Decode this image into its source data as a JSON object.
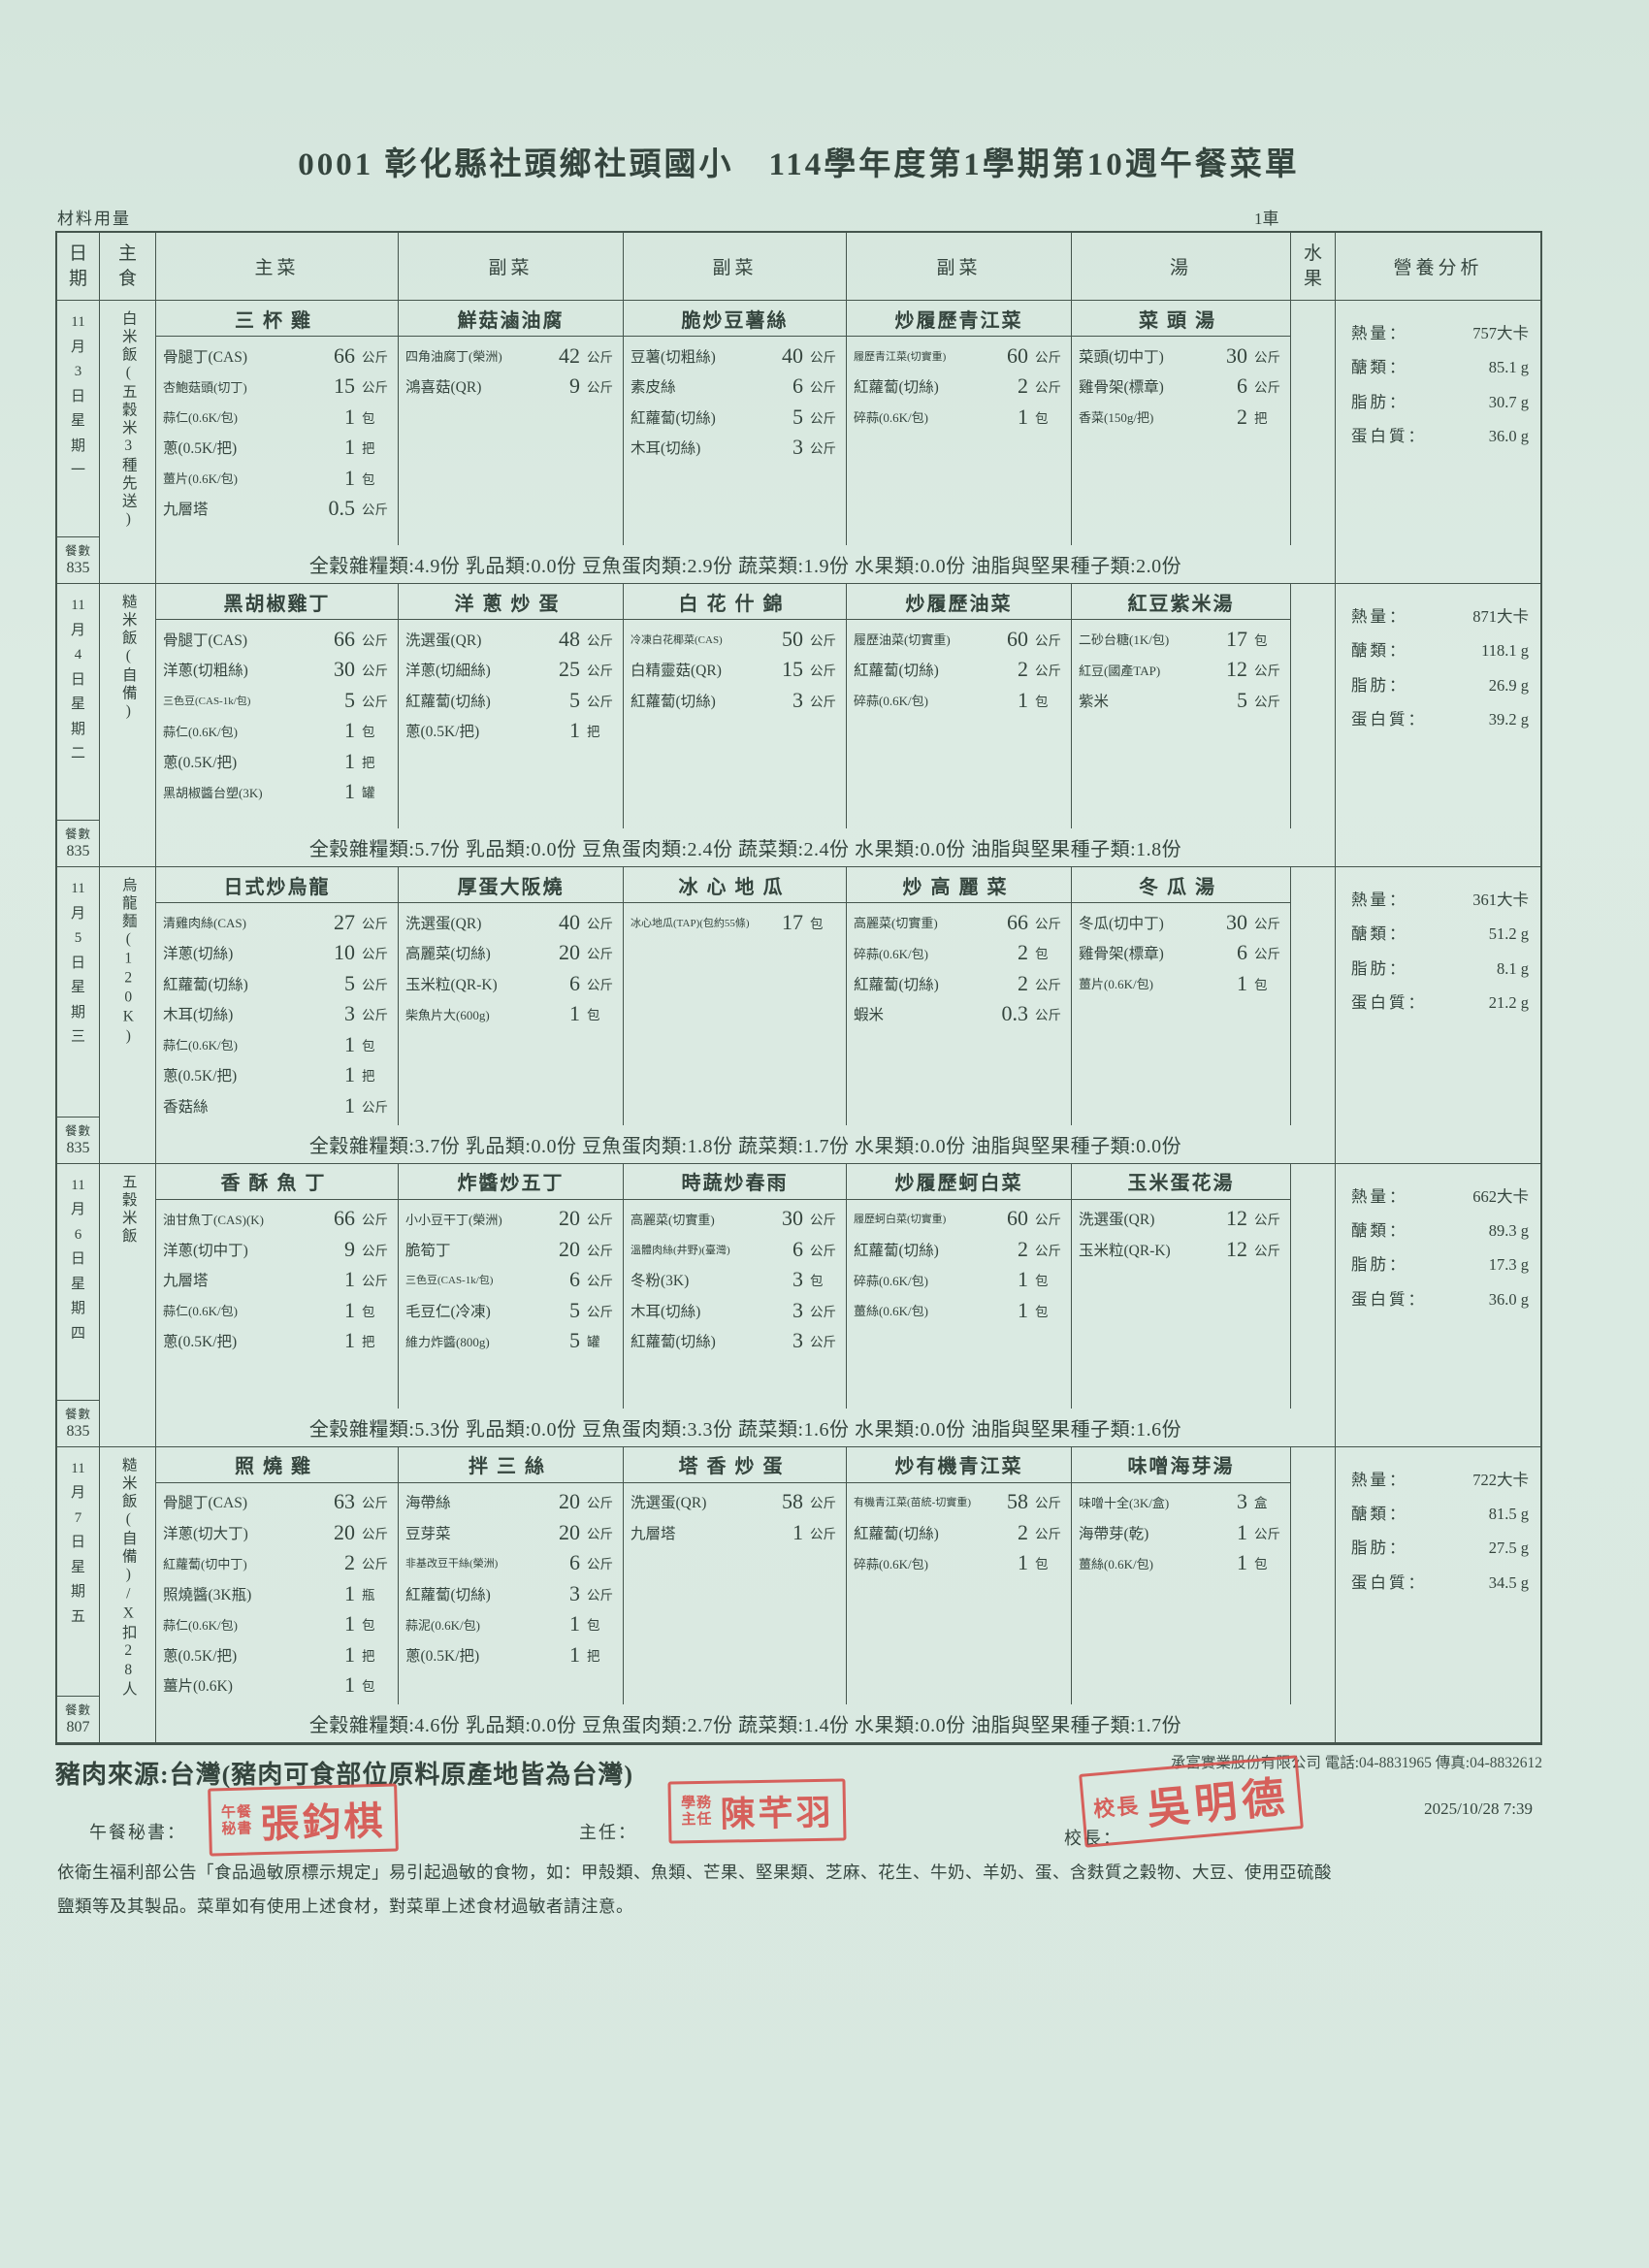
{
  "page": {
    "title": "0001 彰化縣社頭鄉社頭國小　114學年度第1學期第10週午餐菜單",
    "top_left_label": "材料用量",
    "top_right_label": "1車"
  },
  "table": {
    "headers": [
      "日期",
      "主食",
      "主菜",
      "副菜",
      "副菜",
      "副菜",
      "湯",
      "水果",
      "營養分析"
    ],
    "meal_count_label": "餐數"
  },
  "days": [
    {
      "date": "11月3日星期一",
      "meals": "835",
      "staple": "白米飯(五穀米3種先送)",
      "dishes": [
        {
          "title": "三杯雞",
          "items": [
            [
              "骨腿丁(CAS)",
              "66",
              "公斤"
            ],
            [
              "杏鮑菇頭(切丁)",
              "15",
              "公斤"
            ],
            [
              "蒜仁(0.6K/包)",
              "1",
              "包"
            ],
            [
              "蔥(0.5K/把)",
              "1",
              "把"
            ],
            [
              "薑片(0.6K/包)",
              "1",
              "包"
            ],
            [
              "九層塔",
              "0.5",
              "公斤"
            ]
          ]
        },
        {
          "title": "鮮菇滷油腐",
          "items": [
            [
              "四角油腐丁(榮洲)",
              "42",
              "公斤"
            ],
            [
              "鴻喜菇(QR)",
              "9",
              "公斤"
            ]
          ]
        },
        {
          "title": "脆炒豆薯絲",
          "items": [
            [
              "豆薯(切粗絲)",
              "40",
              "公斤"
            ],
            [
              "素皮絲",
              "6",
              "公斤"
            ],
            [
              "紅蘿蔔(切絲)",
              "5",
              "公斤"
            ],
            [
              "木耳(切絲)",
              "3",
              "公斤"
            ]
          ]
        },
        {
          "title": "炒履歷青江菜",
          "items": [
            [
              "履歷青江菜(切實重)",
              "60",
              "公斤"
            ],
            [
              "紅蘿蔔(切絲)",
              "2",
              "公斤"
            ],
            [
              "碎蒜(0.6K/包)",
              "1",
              "包"
            ]
          ]
        },
        {
          "title": "菜頭湯",
          "items": [
            [
              "菜頭(切中丁)",
              "30",
              "公斤"
            ],
            [
              "雞骨架(標章)",
              "6",
              "公斤"
            ],
            [
              "香菜(150g/把)",
              "2",
              "把"
            ]
          ]
        }
      ],
      "summary": "全穀雜糧類:4.9份 乳品類:0.0份 豆魚蛋肉類:2.9份 蔬菜類:1.9份 水果類:0.0份 油脂與堅果種子類:2.0份",
      "nutrition": [
        [
          "熱量：",
          "757大卡"
        ],
        [
          "醣類：",
          "85.1 g"
        ],
        [
          "脂肪：",
          "30.7 g"
        ],
        [
          "蛋白質：",
          "36.0 g"
        ]
      ]
    },
    {
      "date": "11月4日星期二",
      "meals": "835",
      "staple": "糙米飯(自備)",
      "dishes": [
        {
          "title": "黑胡椒雞丁",
          "items": [
            [
              "骨腿丁(CAS)",
              "66",
              "公斤"
            ],
            [
              "洋蔥(切粗絲)",
              "30",
              "公斤"
            ],
            [
              "三色豆(CAS-1k/包)",
              "5",
              "公斤"
            ],
            [
              "蒜仁(0.6K/包)",
              "1",
              "包"
            ],
            [
              "蔥(0.5K/把)",
              "1",
              "把"
            ],
            [
              "黑胡椒醬台塑(3K)",
              "1",
              "罐"
            ]
          ]
        },
        {
          "title": "洋蔥炒蛋",
          "items": [
            [
              "洗選蛋(QR)",
              "48",
              "公斤"
            ],
            [
              "洋蔥(切細絲)",
              "25",
              "公斤"
            ],
            [
              "紅蘿蔔(切絲)",
              "5",
              "公斤"
            ],
            [
              "蔥(0.5K/把)",
              "1",
              "把"
            ]
          ]
        },
        {
          "title": "白花什錦",
          "items": [
            [
              "冷凍白花椰菜(CAS)",
              "50",
              "公斤"
            ],
            [
              "白精靈菇(QR)",
              "15",
              "公斤"
            ],
            [
              "紅蘿蔔(切絲)",
              "3",
              "公斤"
            ]
          ]
        },
        {
          "title": "炒履歷油菜",
          "items": [
            [
              "履歷油菜(切實重)",
              "60",
              "公斤"
            ],
            [
              "紅蘿蔔(切絲)",
              "2",
              "公斤"
            ],
            [
              "碎蒜(0.6K/包)",
              "1",
              "包"
            ]
          ]
        },
        {
          "title": "紅豆紫米湯",
          "items": [
            [
              "二砂台糖(1K/包)",
              "17",
              "包"
            ],
            [
              "紅豆(國產TAP)",
              "12",
              "公斤"
            ],
            [
              "紫米",
              "5",
              "公斤"
            ]
          ]
        }
      ],
      "summary": "全穀雜糧類:5.7份 乳品類:0.0份 豆魚蛋肉類:2.4份 蔬菜類:2.4份 水果類:0.0份 油脂與堅果種子類:1.8份",
      "nutrition": [
        [
          "熱量：",
          "871大卡"
        ],
        [
          "醣類：",
          "118.1 g"
        ],
        [
          "脂肪：",
          "26.9 g"
        ],
        [
          "蛋白質：",
          "39.2 g"
        ]
      ]
    },
    {
      "date": "11月5日星期三",
      "meals": "835",
      "staple": "烏龍麵(120K)",
      "dishes": [
        {
          "title": "日式炒烏龍",
          "items": [
            [
              "清雞肉絲(CAS)",
              "27",
              "公斤"
            ],
            [
              "洋蔥(切絲)",
              "10",
              "公斤"
            ],
            [
              "紅蘿蔔(切絲)",
              "5",
              "公斤"
            ],
            [
              "木耳(切絲)",
              "3",
              "公斤"
            ],
            [
              "蒜仁(0.6K/包)",
              "1",
              "包"
            ],
            [
              "蔥(0.5K/把)",
              "1",
              "把"
            ],
            [
              "香菇絲",
              "1",
              "公斤"
            ]
          ]
        },
        {
          "title": "厚蛋大阪燒",
          "items": [
            [
              "洗選蛋(QR)",
              "40",
              "公斤"
            ],
            [
              "高麗菜(切絲)",
              "20",
              "公斤"
            ],
            [
              "玉米粒(QR-K)",
              "6",
              "公斤"
            ],
            [
              "柴魚片大(600g)",
              "1",
              "包"
            ]
          ]
        },
        {
          "title": "冰心地瓜",
          "items": [
            [
              "冰心地瓜(TAP)(包約55條)",
              "17",
              "包"
            ]
          ]
        },
        {
          "title": "炒高麗菜",
          "items": [
            [
              "高麗菜(切實重)",
              "66",
              "公斤"
            ],
            [
              "碎蒜(0.6K/包)",
              "2",
              "包"
            ],
            [
              "紅蘿蔔(切絲)",
              "2",
              "公斤"
            ],
            [
              "蝦米",
              "0.3",
              "公斤"
            ]
          ]
        },
        {
          "title": "冬瓜湯",
          "items": [
            [
              "冬瓜(切中丁)",
              "30",
              "公斤"
            ],
            [
              "雞骨架(標章)",
              "6",
              "公斤"
            ],
            [
              "薑片(0.6K/包)",
              "1",
              "包"
            ]
          ]
        }
      ],
      "summary": "全穀雜糧類:3.7份 乳品類:0.0份 豆魚蛋肉類:1.8份 蔬菜類:1.7份 水果類:0.0份 油脂與堅果種子類:0.0份",
      "nutrition": [
        [
          "熱量：",
          "361大卡"
        ],
        [
          "醣類：",
          "51.2 g"
        ],
        [
          "脂肪：",
          "8.1 g"
        ],
        [
          "蛋白質：",
          "21.2 g"
        ]
      ]
    },
    {
      "date": "11月6日星期四",
      "meals": "835",
      "staple": "五穀米飯",
      "dishes": [
        {
          "title": "香酥魚丁",
          "items": [
            [
              "油甘魚丁(CAS)(K)",
              "66",
              "公斤"
            ],
            [
              "洋蔥(切中丁)",
              "9",
              "公斤"
            ],
            [
              "九層塔",
              "1",
              "公斤"
            ],
            [
              "蒜仁(0.6K/包)",
              "1",
              "包"
            ],
            [
              "蔥(0.5K/把)",
              "1",
              "把"
            ]
          ]
        },
        {
          "title": "炸醬炒五丁",
          "items": [
            [
              "小小豆干丁(榮洲)",
              "20",
              "公斤"
            ],
            [
              "脆筍丁",
              "20",
              "公斤"
            ],
            [
              "三色豆(CAS-1k/包)",
              "6",
              "公斤"
            ],
            [
              "毛豆仁(冷凍)",
              "5",
              "公斤"
            ],
            [
              "維力炸醬(800g)",
              "5",
              "罐"
            ]
          ]
        },
        {
          "title": "時蔬炒春雨",
          "items": [
            [
              "高麗菜(切實重)",
              "30",
              "公斤"
            ],
            [
              "溫體肉絲(井野)(臺灣)",
              "6",
              "公斤"
            ],
            [
              "冬粉(3K)",
              "3",
              "包"
            ],
            [
              "木耳(切絲)",
              "3",
              "公斤"
            ],
            [
              "紅蘿蔔(切絲)",
              "3",
              "公斤"
            ]
          ]
        },
        {
          "title": "炒履歷蚵白菜",
          "items": [
            [
              "履歷蚵白菜(切實重)",
              "60",
              "公斤"
            ],
            [
              "紅蘿蔔(切絲)",
              "2",
              "公斤"
            ],
            [
              "碎蒜(0.6K/包)",
              "1",
              "包"
            ],
            [
              "薑絲(0.6K/包)",
              "1",
              "包"
            ]
          ]
        },
        {
          "title": "玉米蛋花湯",
          "items": [
            [
              "洗選蛋(QR)",
              "12",
              "公斤"
            ],
            [
              "玉米粒(QR-K)",
              "12",
              "公斤"
            ]
          ]
        }
      ],
      "summary": "全穀雜糧類:5.3份 乳品類:0.0份 豆魚蛋肉類:3.3份 蔬菜類:1.6份 水果類:0.0份 油脂與堅果種子類:1.6份",
      "nutrition": [
        [
          "熱量：",
          "662大卡"
        ],
        [
          "醣類：",
          "89.3 g"
        ],
        [
          "脂肪：",
          "17.3 g"
        ],
        [
          "蛋白質：",
          "36.0 g"
        ]
      ]
    },
    {
      "date": "11月7日星期五",
      "meals": "807",
      "staple": "糙米飯(自備)/X扣28人",
      "dishes": [
        {
          "title": "照燒雞",
          "items": [
            [
              "骨腿丁(CAS)",
              "63",
              "公斤"
            ],
            [
              "洋蔥(切大丁)",
              "20",
              "公斤"
            ],
            [
              "紅蘿蔔(切中丁)",
              "2",
              "公斤"
            ],
            [
              "照燒醬(3K瓶)",
              "1",
              "瓶"
            ],
            [
              "蒜仁(0.6K/包)",
              "1",
              "包"
            ],
            [
              "蔥(0.5K/把)",
              "1",
              "把"
            ],
            [
              "薑片(0.6K)",
              "1",
              "包"
            ]
          ]
        },
        {
          "title": "拌三絲",
          "items": [
            [
              "海帶絲",
              "20",
              "公斤"
            ],
            [
              "豆芽菜",
              "20",
              "公斤"
            ],
            [
              "非基改豆干絲(榮洲)",
              "6",
              "公斤"
            ],
            [
              "紅蘿蔔(切絲)",
              "3",
              "公斤"
            ],
            [
              "蒜泥(0.6K/包)",
              "1",
              "包"
            ],
            [
              "蔥(0.5K/把)",
              "1",
              "把"
            ]
          ]
        },
        {
          "title": "塔香炒蛋",
          "items": [
            [
              "洗選蛋(QR)",
              "58",
              "公斤"
            ],
            [
              "九層塔",
              "1",
              "公斤"
            ]
          ]
        },
        {
          "title": "炒有機青江菜",
          "items": [
            [
              "有機青江菜(苗統-切實重)",
              "58",
              "公斤"
            ],
            [
              "紅蘿蔔(切絲)",
              "2",
              "公斤"
            ],
            [
              "碎蒜(0.6K/包)",
              "1",
              "包"
            ]
          ]
        },
        {
          "title": "味噌海芽湯",
          "items": [
            [
              "味噌十全(3K/盒)",
              "3",
              "盒"
            ],
            [
              "海帶芽(乾)",
              "1",
              "公斤"
            ],
            [
              "薑絲(0.6K/包)",
              "1",
              "包"
            ]
          ]
        }
      ],
      "summary": "全穀雜糧類:4.6份 乳品類:0.0份 豆魚蛋肉類:2.7份 蔬菜類:1.4份 水果類:0.0份 油脂與堅果種子類:1.7份",
      "nutrition": [
        [
          "熱量：",
          "722大卡"
        ],
        [
          "醣類：",
          "81.5 g"
        ],
        [
          "脂肪：",
          "27.5 g"
        ],
        [
          "蛋白質：",
          "34.5 g"
        ]
      ]
    }
  ],
  "footer": {
    "pork_origin": "豬肉來源:台灣(豬肉可食部位原料原產地皆為台灣)",
    "supplier": "承富實業股份有限公司 電話:04-8831965 傳真:04-8832612",
    "datetime": "2025/10/28 7:39",
    "secretary_label": "午餐秘書：",
    "director_label": "主任：",
    "principal_label": "校長：",
    "stamps": {
      "secretary": {
        "prefix": "午餐秘書",
        "name": "張鈞棋"
      },
      "director": {
        "prefix": "學務主任",
        "name": "陳芊羽"
      },
      "principal": {
        "prefix": "校長",
        "name": "吳明德"
      }
    },
    "allergy_line1": "依衛生福利部公告「食品過敏原標示規定」易引起過敏的食物，如：甲殼類、魚類、芒果、堅果類、芝麻、花生、牛奶、羊奶、蛋、含麩質之穀物、大豆、使用亞硫酸",
    "allergy_line2": "鹽類等及其製品。菜單如有使用上述食材，對菜單上述食材過敏者請注意。"
  },
  "colors": {
    "paper": "#d8e8e0",
    "ink": "#35453e",
    "stamp_red": "#d65550"
  }
}
